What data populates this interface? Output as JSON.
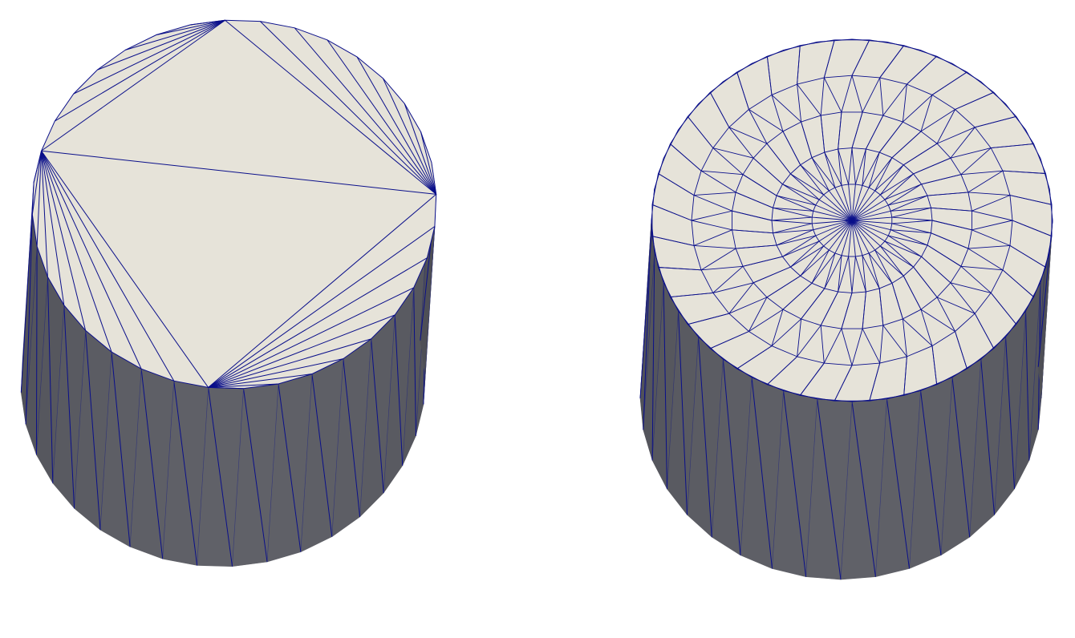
{
  "background_color": "#ffffff",
  "colors": {
    "cap_fill": "#e6e3d9",
    "side_fill_light": "#606168",
    "side_fill_dark": "#3f4047",
    "mesh_edge": "#0a0f8a"
  },
  "meshes": [
    {
      "id": "coarse",
      "cap_triangulation": "fan-strip",
      "rim_segments": 36,
      "side_panels": 36
    },
    {
      "id": "fine",
      "cap_triangulation": "radial-rings",
      "rim_segments": 36,
      "rings": 5,
      "center_fan_segments": 36,
      "side_panels": 36
    }
  ]
}
